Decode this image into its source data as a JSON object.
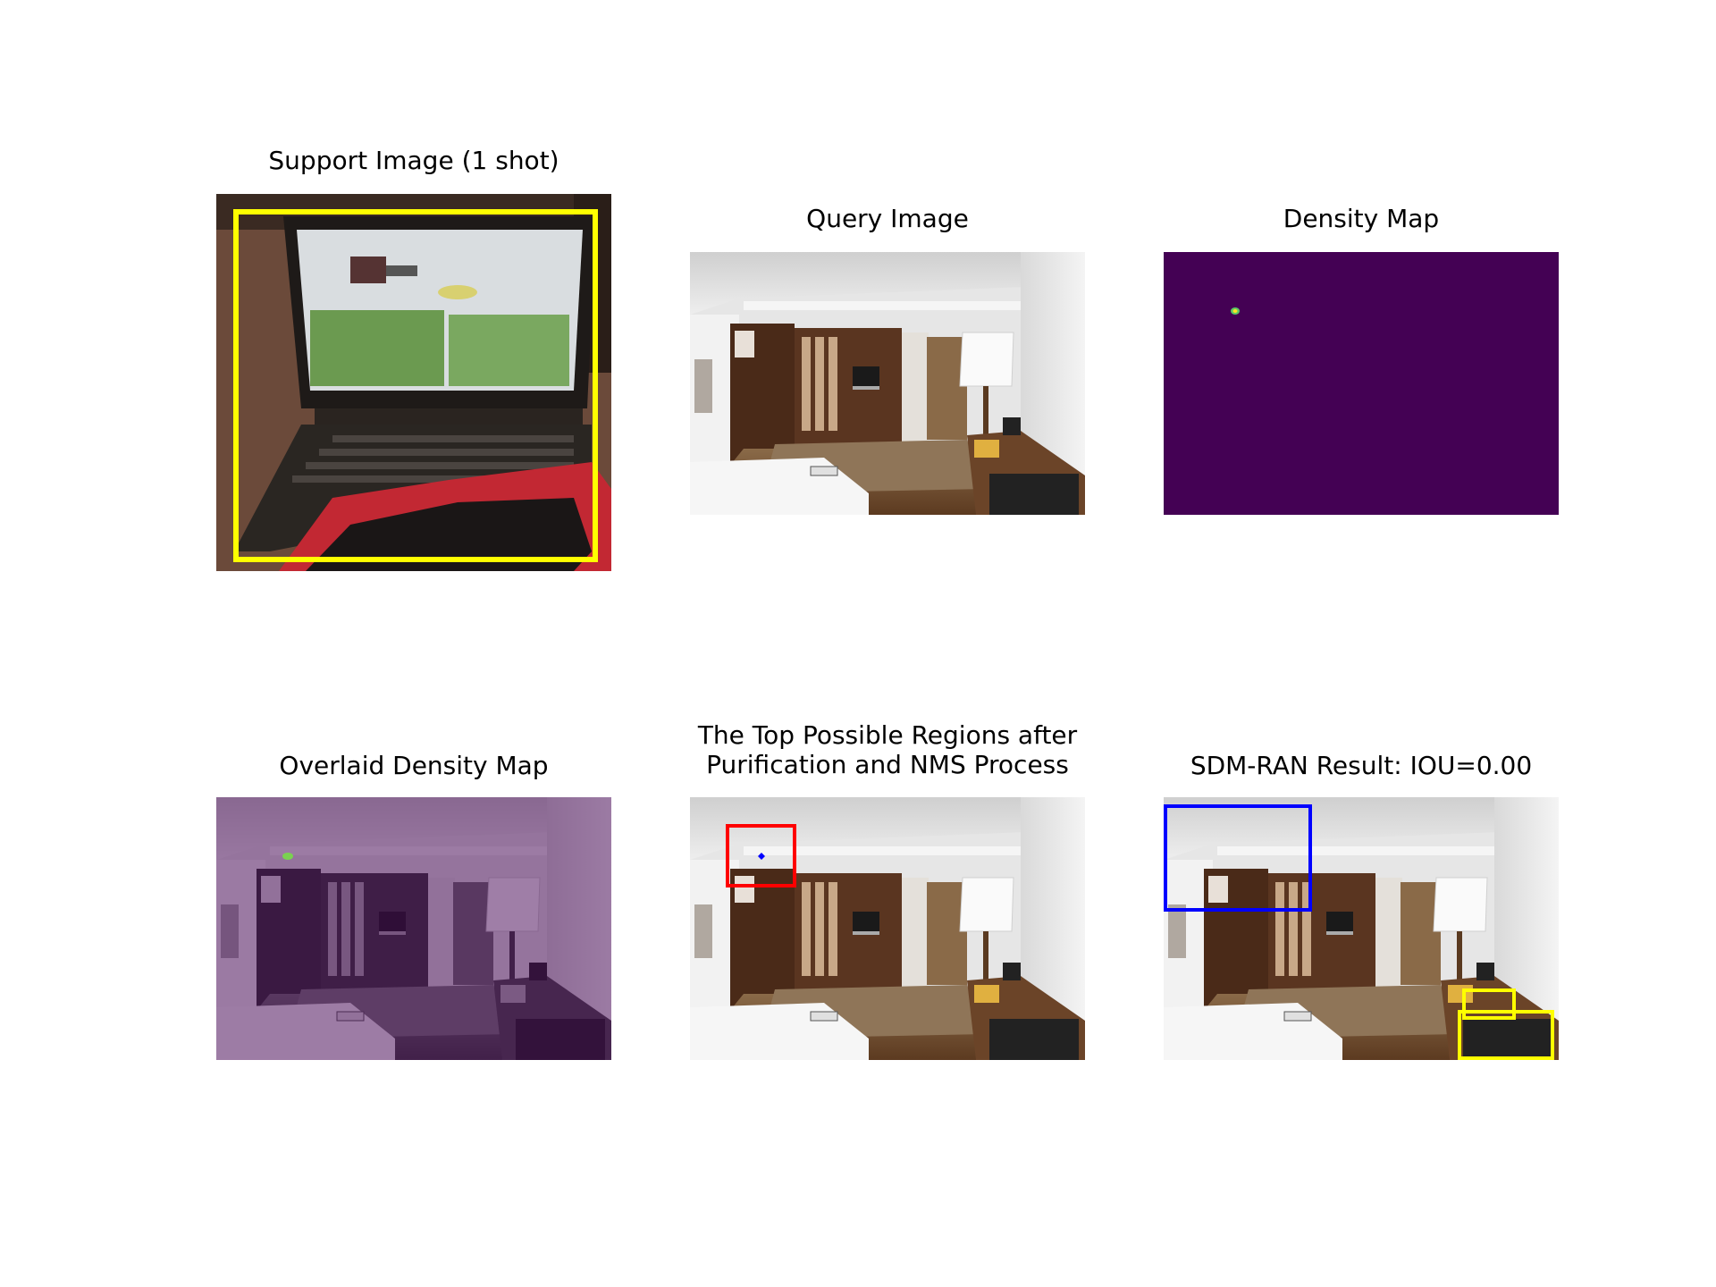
{
  "panels": {
    "support": {
      "title": "Support Image (1 shot)"
    },
    "query": {
      "title": "Query Image"
    },
    "density": {
      "title": "Density Map"
    },
    "overlaid": {
      "title": "Overlaid Density Map"
    },
    "regions": {
      "title_line1": "The Top Possible Regions after",
      "title_line2": "Purification and NMS Process"
    },
    "result": {
      "title": "SDM-RAN Result: IOU=0.00"
    }
  },
  "colors": {
    "support_box": "#ffff00",
    "region_box": "#ff0000",
    "region_point": "#0000ff",
    "prediction_box": "#0000ff",
    "ground_truth_box": "#ffff00",
    "density_background": "#440154"
  }
}
